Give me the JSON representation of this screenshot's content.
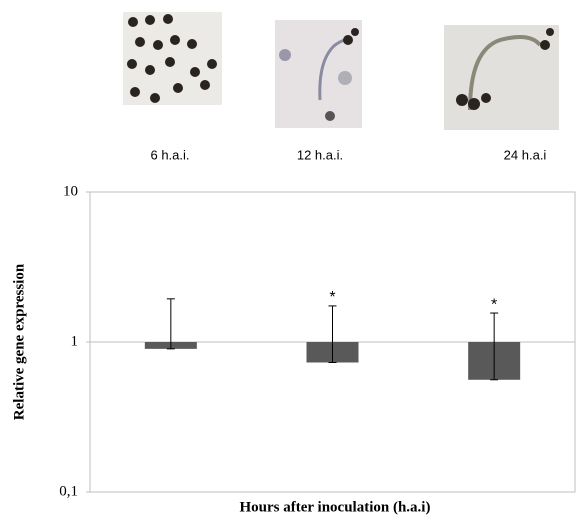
{
  "chart_data": {
    "type": "bar",
    "categories": [
      "6 h.a.i.",
      "12 h.a.i.",
      "24 h.a.i"
    ],
    "values": [
      0.9,
      0.73,
      0.56
    ],
    "errors": [
      1.04,
      1.01,
      1.0
    ],
    "annotations": [
      null,
      "*",
      "*"
    ],
    "color": "#595959",
    "ylabel": "Relative gene expression",
    "xlabel": "Hours after inoculation (h.a.i)",
    "log_scale": true,
    "ylim": [
      0.1,
      10
    ],
    "yticks": [
      {
        "value": 0.1,
        "label": "0,1"
      },
      1,
      10
    ]
  }
}
